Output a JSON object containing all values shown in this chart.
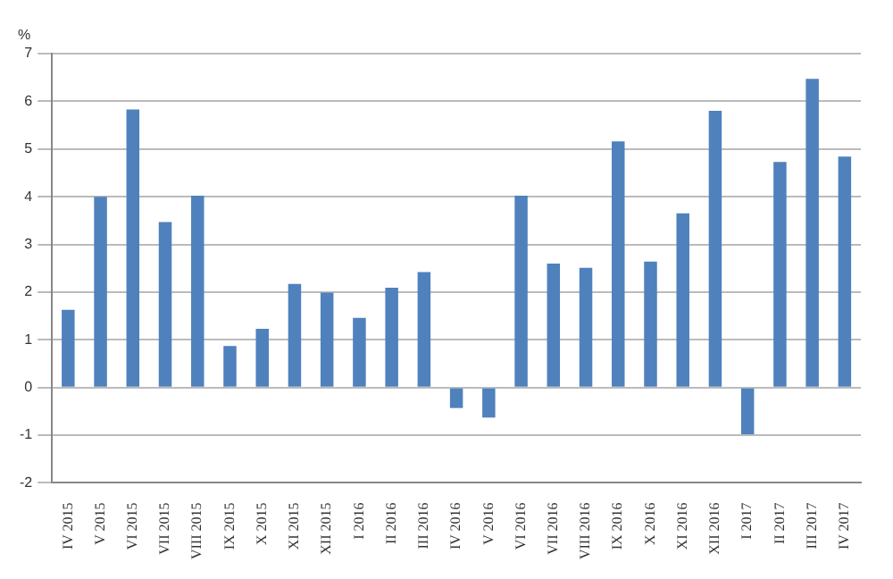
{
  "chart_data": {
    "type": "bar",
    "ylabel": "%",
    "categories": [
      "IV 2015",
      "V 2015",
      "VI 2015",
      "VII 2015",
      "VIII 2015",
      "IX 2015",
      "X 2015",
      "XI 2015",
      "XII 2015",
      "I 2016",
      "II 2016",
      "III 2016",
      "IV 2016",
      "V 2016",
      "VI 2016",
      "VII 2016",
      "VIII 2016",
      "IX 2016",
      "X 2016",
      "XI 2016",
      "XII 2016",
      "I 2017",
      "II 2017",
      "III 2017",
      "IV 2017"
    ],
    "values": [
      1.63,
      4.0,
      5.83,
      3.47,
      4.02,
      0.87,
      1.23,
      2.17,
      1.99,
      1.46,
      2.09,
      2.42,
      -0.43,
      -0.63,
      4.02,
      2.6,
      2.51,
      5.16,
      2.64,
      3.65,
      5.8,
      -0.98,
      4.73,
      6.47,
      4.84
    ],
    "color": "#4f81bd",
    "ylim": [
      -2,
      7
    ],
    "yticks": [
      -2,
      -1,
      0,
      1,
      2,
      3,
      4,
      5,
      6,
      7
    ],
    "grid": "y",
    "legend": false
  }
}
